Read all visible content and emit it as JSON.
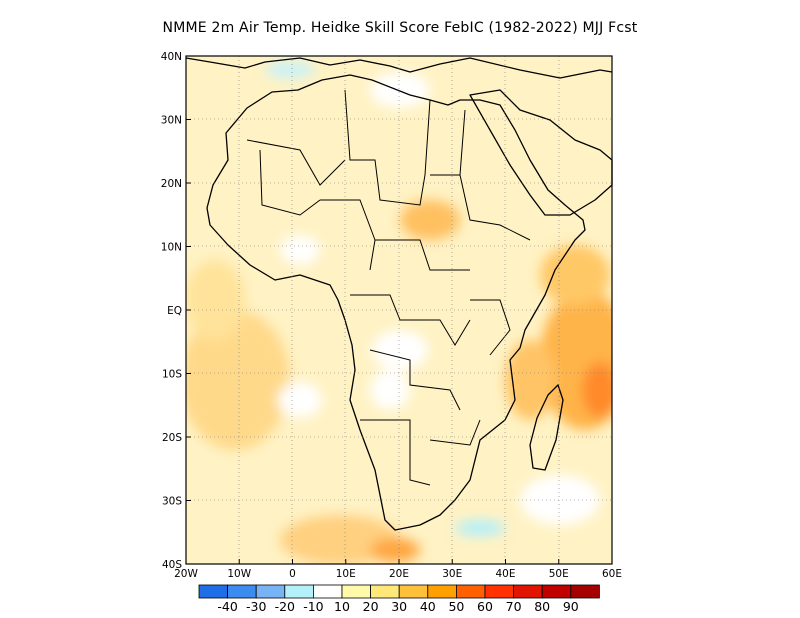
{
  "title": "NMME  2m Air Temp. Heidke Skill Score FebIC (1982-2022) MJJ Fcst",
  "axes": {
    "lon_range": [
      -20,
      60
    ],
    "lat_range": [
      -40,
      40
    ],
    "x_ticks": [
      {
        "value": -20,
        "label": "20W"
      },
      {
        "value": -10,
        "label": "10W"
      },
      {
        "value": 0,
        "label": "0"
      },
      {
        "value": 10,
        "label": "10E"
      },
      {
        "value": 20,
        "label": "20E"
      },
      {
        "value": 30,
        "label": "30E"
      },
      {
        "value": 40,
        "label": "40E"
      },
      {
        "value": 50,
        "label": "50E"
      },
      {
        "value": 60,
        "label": "60E"
      }
    ],
    "y_ticks": [
      {
        "value": 40,
        "label": "40N"
      },
      {
        "value": 30,
        "label": "30N"
      },
      {
        "value": 20,
        "label": "20N"
      },
      {
        "value": 10,
        "label": "10N"
      },
      {
        "value": 0,
        "label": "EQ"
      },
      {
        "value": -10,
        "label": "10S"
      },
      {
        "value": -20,
        "label": "20S"
      },
      {
        "value": -30,
        "label": "30S"
      },
      {
        "value": -40,
        "label": "40S"
      }
    ],
    "grid": "dotted"
  },
  "colorbar": {
    "colors": [
      "#1e6ee6",
      "#3c8cf0",
      "#78b4f5",
      "#b4f0fa",
      "#ffffff",
      "#fffaaa",
      "#ffe878",
      "#ffc03c",
      "#ffa000",
      "#ff6000",
      "#ff3200",
      "#e11400",
      "#c00000",
      "#a50000"
    ],
    "labels": [
      "-40",
      "-30",
      "-20",
      "-10",
      "10",
      "20",
      "30",
      "40",
      "50",
      "60",
      "70",
      "80",
      "90"
    ]
  },
  "map": {
    "background": "#fff2c4",
    "land_outline": "#000000"
  }
}
